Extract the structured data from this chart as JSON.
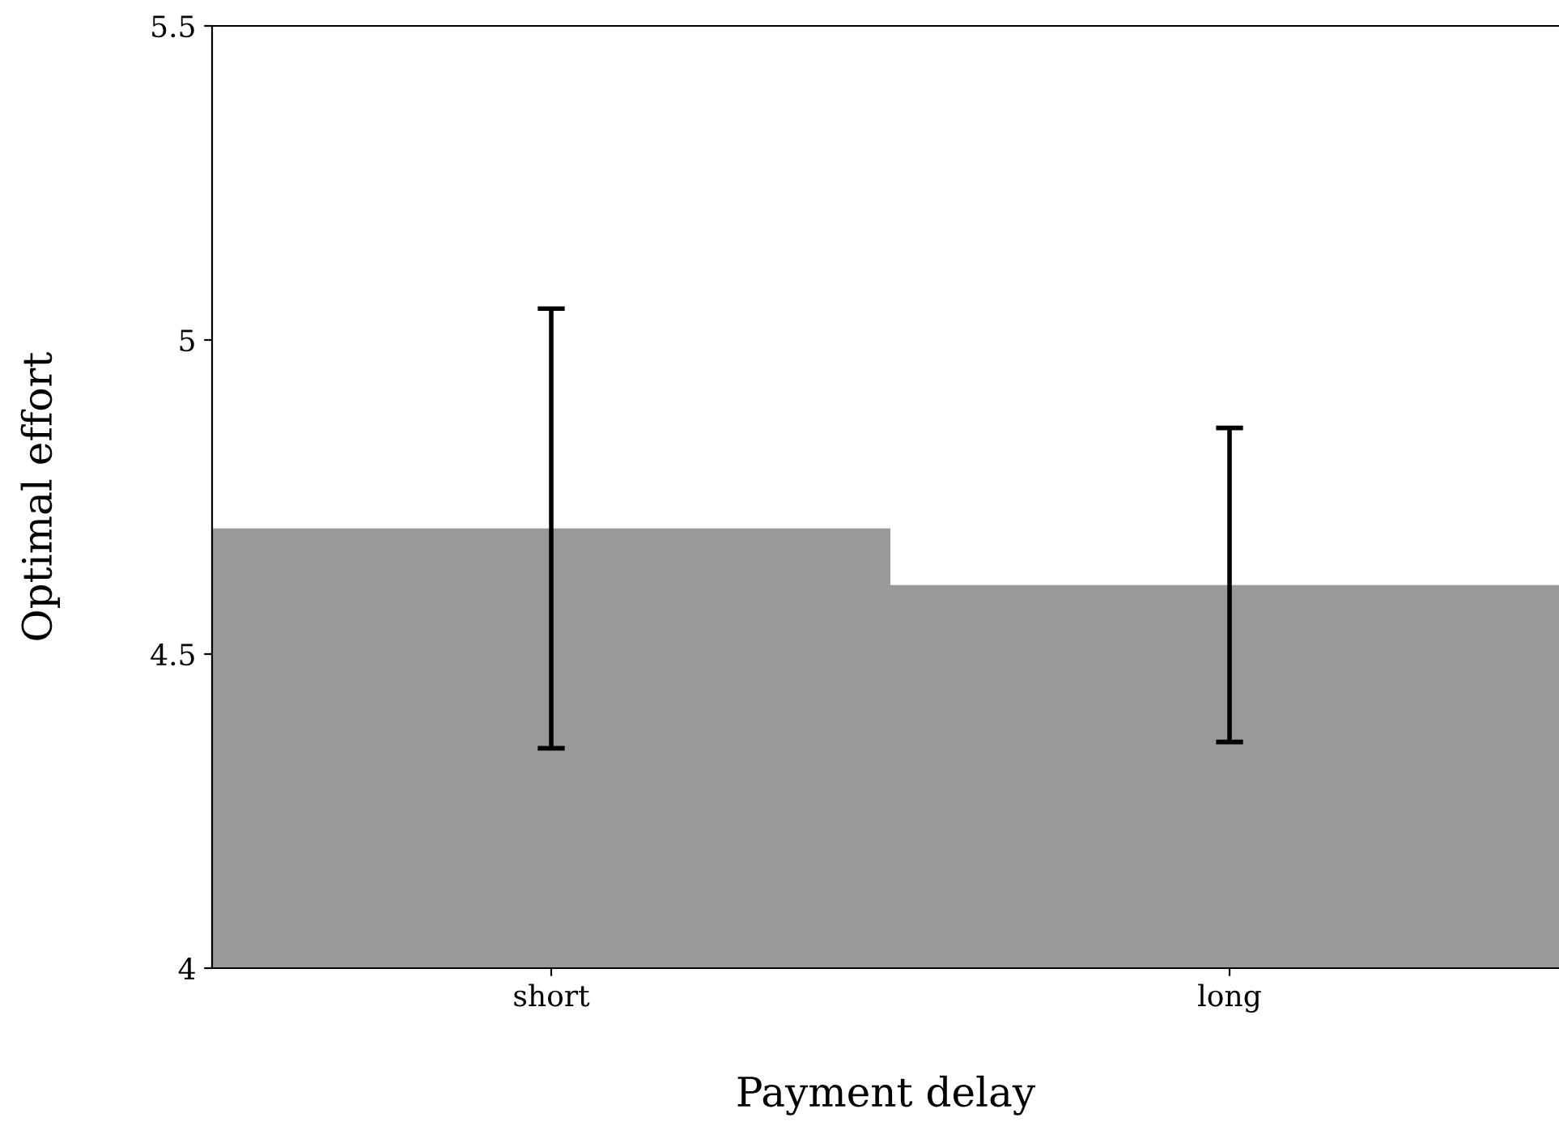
{
  "chart_data": {
    "type": "bar",
    "xlabel": "Payment delay",
    "ylabel": "Optimal effort",
    "categories": [
      "short",
      "long"
    ],
    "values": [
      4.7,
      4.61
    ],
    "errors": [
      [
        4.35,
        5.05
      ],
      [
        4.36,
        4.86
      ]
    ],
    "color": "#999999",
    "ylim": [
      4,
      5.5
    ],
    "yticks": [
      4,
      4.5,
      5,
      5.5
    ],
    "grid": false,
    "legend": false
  }
}
